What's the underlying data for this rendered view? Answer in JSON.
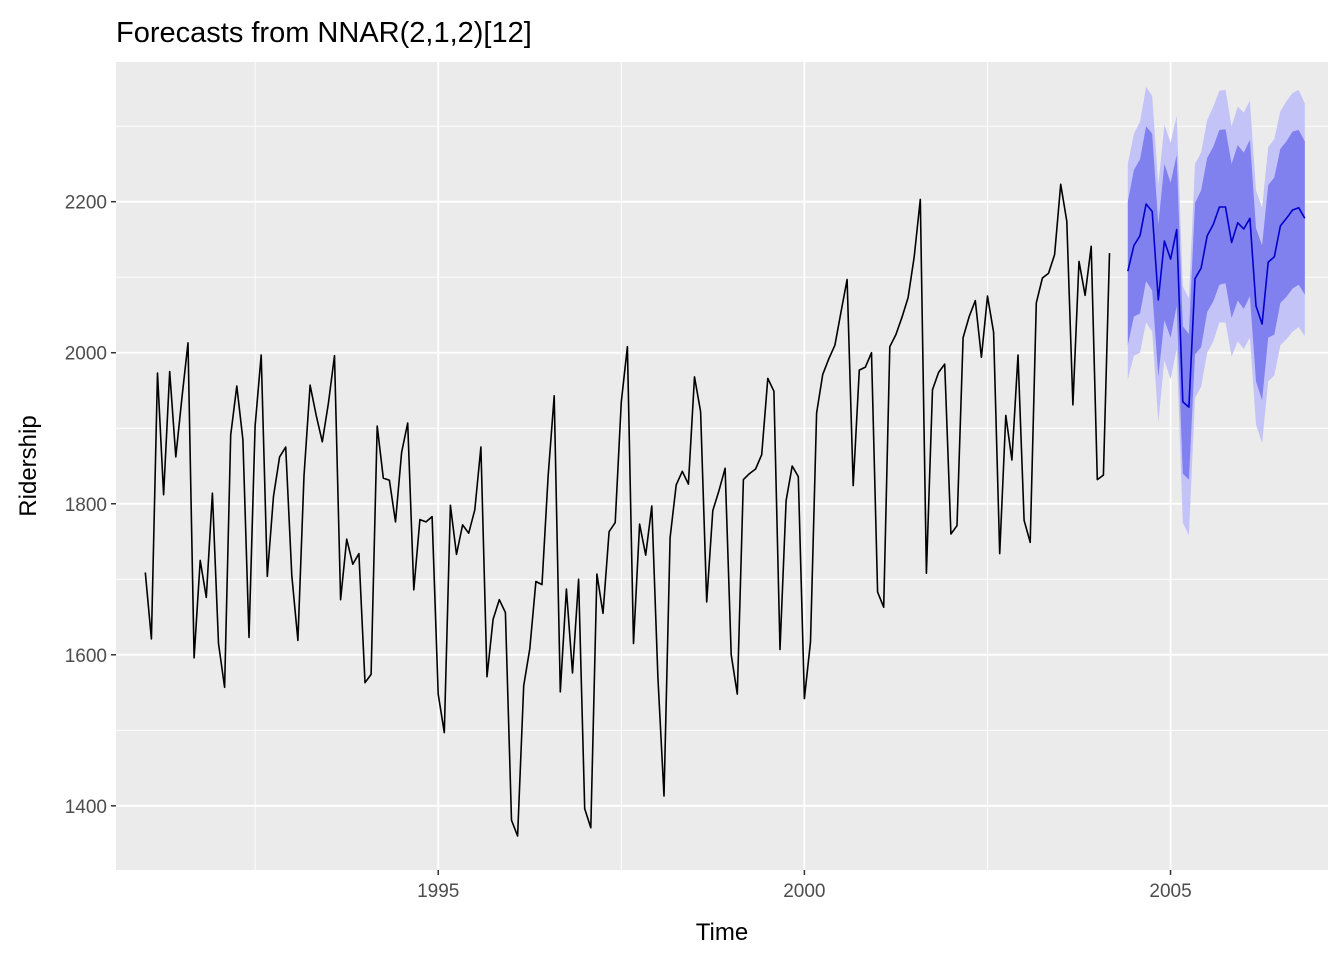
{
  "chart_data": {
    "type": "line",
    "title": "Forecasts from NNAR(2,1,2)[12]",
    "xlabel": "Time",
    "ylabel": "Ridership",
    "xlim": [
      1990.6,
      2007.15
    ],
    "ylim": [
      1315,
      2385
    ],
    "x_ticks": [
      1995,
      2000,
      2005
    ],
    "x_tick_labels": [
      "1995",
      "2000",
      "2005"
    ],
    "y_ticks": [
      1400,
      1600,
      1800,
      2000,
      2200
    ],
    "y_tick_labels": [
      "1400",
      "1600",
      "1800",
      "2000",
      "2200"
    ],
    "grid": true,
    "panel_background": "#ebebeb",
    "colors": {
      "history": "#000000",
      "forecast": "#0000cc",
      "band_80": "#8080ee",
      "band_95": "#c3c3f7"
    },
    "series": [
      {
        "role": "history",
        "start": 1991.0,
        "step": 0.0833333,
        "values": [
          1709,
          1621,
          1973,
          1812,
          1975,
          1862,
          1940,
          2013,
          1596,
          1725,
          1676,
          1814,
          1615,
          1557,
          1891,
          1956,
          1885,
          1623,
          1903,
          1997,
          1704,
          1810,
          1862,
          1875,
          1705,
          1619,
          1837,
          1957,
          1917,
          1882,
          1933,
          1996,
          1673,
          1753,
          1720,
          1734,
          1563,
          1574,
          1903,
          1834,
          1831,
          1776,
          1868,
          1907,
          1686,
          1779,
          1776,
          1783,
          1548,
          1497,
          1798,
          1733,
          1772,
          1761,
          1792,
          1875,
          1571,
          1647,
          1673,
          1656,
          1381,
          1360,
          1559,
          1608,
          1697,
          1693,
          1836,
          1943,
          1551,
          1687,
          1576,
          1700,
          1396,
          1371,
          1707,
          1655,
          1763,
          1775,
          1935,
          2008,
          1615,
          1773,
          1732,
          1797,
          1570,
          1413,
          1755,
          1825,
          1843,
          1826,
          1968,
          1922,
          1670,
          1791,
          1817,
          1847,
          1600,
          1548,
          1832,
          1840,
          1846,
          1865,
          1966,
          1949,
          1607,
          1804,
          1850,
          1836,
          1542,
          1617,
          1920,
          1971,
          1992,
          2010,
          2054,
          2097,
          1824,
          1977,
          1981,
          2000,
          1683,
          1663,
          2008,
          2024,
          2047,
          2073,
          2127,
          2203,
          1708,
          1951,
          1974,
          1985,
          1760,
          1771,
          2020,
          2048,
          2069,
          1994,
          2075,
          2027,
          1734,
          1917,
          1858,
          1997,
          1778,
          1749,
          2066,
          2099,
          2105,
          2130,
          2223,
          2174,
          1931,
          2121,
          2076,
          2141,
          1832,
          1838,
          2132
        ]
      },
      {
        "role": "forecast",
        "name": "point forecast",
        "start": 2004.4167,
        "step": 0.0833333,
        "values": [
          2108,
          2142,
          2155,
          2197,
          2187,
          2070,
          2148,
          2124,
          2163,
          1935,
          1928,
          2098,
          2112,
          2155,
          2170,
          2193,
          2193,
          2146,
          2172,
          2164,
          2178,
          2062,
          2038,
          2120,
          2127,
          2168,
          2178,
          2189,
          2192,
          2178
        ],
        "lo80": [
          2010,
          2048,
          2052,
          2095,
          2082,
          1968,
          2043,
          2020,
          2062,
          1840,
          1832,
          1998,
          2007,
          2054,
          2068,
          2090,
          2092,
          2046,
          2069,
          2058,
          2075,
          1962,
          1937,
          2020,
          2024,
          2066,
          2074,
          2085,
          2090,
          2077
        ],
        "hi80": [
          2200,
          2242,
          2256,
          2300,
          2290,
          2170,
          2250,
          2225,
          2262,
          2035,
          2025,
          2198,
          2215,
          2258,
          2273,
          2295,
          2296,
          2250,
          2275,
          2265,
          2282,
          2165,
          2142,
          2222,
          2232,
          2270,
          2280,
          2293,
          2295,
          2280
        ],
        "lo95": [
          1965,
          1996,
          2000,
          2040,
          2028,
          1908,
          1990,
          1965,
          2005,
          1775,
          1758,
          1940,
          1955,
          2000,
          2015,
          2040,
          2040,
          1995,
          2015,
          2005,
          2020,
          1905,
          1880,
          1962,
          1970,
          2010,
          2018,
          2028,
          2034,
          2022
        ],
        "hi95": [
          2250,
          2290,
          2306,
          2352,
          2340,
          2222,
          2302,
          2278,
          2314,
          2088,
          2072,
          2250,
          2265,
          2308,
          2326,
          2347,
          2348,
          2300,
          2326,
          2318,
          2334,
          2215,
          2192,
          2272,
          2283,
          2320,
          2333,
          2344,
          2348,
          2330
        ]
      }
    ]
  }
}
